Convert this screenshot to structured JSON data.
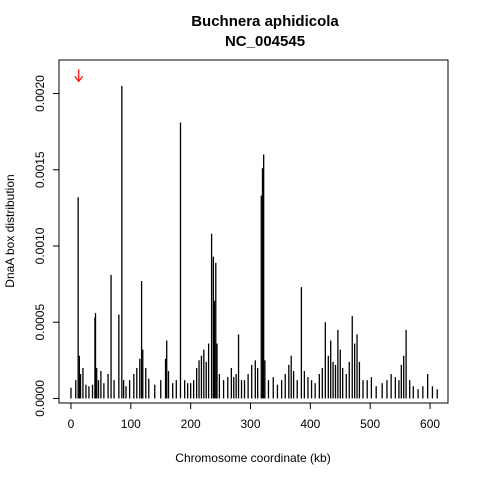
{
  "chart_data": {
    "type": "bar",
    "title": "Buchnera aphidicola",
    "subtitle": "NC_004545",
    "xlabel": "Chromosome coordinate (kb)",
    "ylabel": "DnaA box distribution",
    "xlim": [
      -20,
      630
    ],
    "ylim": [
      -3e-05,
      0.00222
    ],
    "x_ticks": [
      0,
      100,
      200,
      300,
      400,
      500,
      600
    ],
    "x_tick_labels": [
      "0",
      "100",
      "200",
      "300",
      "400",
      "500",
      "600"
    ],
    "y_ticks": [
      0.0,
      0.0005,
      0.001,
      0.0015,
      0.002
    ],
    "y_tick_labels": [
      "0.0000",
      "0.0005",
      "0.0010",
      "0.0015",
      "0.0020"
    ],
    "grid": false,
    "marker": {
      "x": 13,
      "y": 0.00208,
      "color": "#ff0000",
      "shape": "down-arrow"
    },
    "bars": {
      "x": [
        0,
        8,
        12,
        14,
        16,
        20,
        25,
        30,
        36,
        40,
        41,
        43,
        46,
        50,
        55,
        62,
        67,
        72,
        80,
        85,
        88,
        92,
        98,
        105,
        110,
        115,
        118,
        120,
        125,
        130,
        140,
        150,
        158,
        160,
        163,
        170,
        176,
        183,
        190,
        195,
        200,
        205,
        210,
        214,
        218,
        222,
        226,
        230,
        235,
        238,
        240,
        242,
        244,
        248,
        255,
        262,
        268,
        272,
        276,
        280,
        285,
        290,
        296,
        302,
        308,
        312,
        318,
        320,
        322,
        324,
        330,
        338,
        345,
        352,
        358,
        364,
        368,
        372,
        378,
        385,
        390,
        396,
        402,
        408,
        415,
        420,
        425,
        430,
        434,
        438,
        442,
        446,
        450,
        454,
        460,
        465,
        470,
        474,
        478,
        482,
        488,
        495,
        502,
        510,
        520,
        528,
        535,
        542,
        548,
        552,
        556,
        560,
        566,
        572,
        580,
        588,
        596,
        604,
        612
      ],
      "values": [
        7e-05,
        0.00012,
        0.00132,
        0.00028,
        0.00016,
        0.0002,
        9e-05,
        8e-05,
        9e-05,
        0.00053,
        0.00056,
        0.0002,
        0.00012,
        0.00018,
        0.0001,
        0.00016,
        0.00081,
        0.00012,
        0.00055,
        0.00205,
        0.00012,
        8e-05,
        0.00012,
        0.00016,
        0.0002,
        0.00026,
        0.00077,
        0.00032,
        0.0002,
        0.00013,
        9e-05,
        0.00012,
        0.00026,
        0.00038,
        0.00018,
        0.0001,
        0.00012,
        0.00181,
        0.00012,
        0.0001,
        0.0001,
        0.00012,
        0.0002,
        0.00025,
        0.00028,
        0.00032,
        0.00024,
        0.00036,
        0.00108,
        0.00093,
        0.00064,
        0.00089,
        0.00036,
        0.00016,
        0.00012,
        0.00014,
        0.0002,
        0.00014,
        0.00016,
        0.00042,
        0.00012,
        0.00012,
        0.00016,
        0.00022,
        0.00025,
        0.0002,
        0.00133,
        0.00151,
        0.0016,
        0.00025,
        0.00012,
        0.00014,
        9e-05,
        0.00012,
        0.00016,
        0.00022,
        0.00028,
        0.00018,
        0.00012,
        0.00073,
        0.00018,
        0.00014,
        0.00012,
        0.0001,
        0.00016,
        0.0002,
        0.0005,
        0.00028,
        0.00038,
        0.00024,
        0.00022,
        0.00045,
        0.00032,
        0.0002,
        0.00016,
        0.00024,
        0.00054,
        0.00036,
        0.00042,
        0.00024,
        0.00012,
        0.00012,
        0.00014,
        8e-05,
        0.0001,
        0.00012,
        0.00016,
        0.00014,
        0.00012,
        0.00022,
        0.00028,
        0.00045,
        0.00012,
        8e-05,
        6e-05,
        8e-05,
        0.00016,
        8e-05,
        6e-05
      ]
    }
  }
}
